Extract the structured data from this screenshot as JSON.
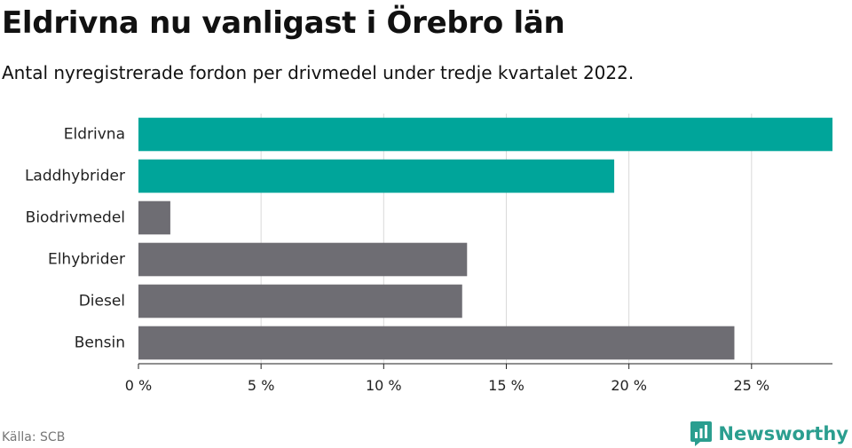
{
  "title": "Eldrivna nu vanligast i Örebro län",
  "subtitle": "Antal nyregistrerade fordon per drivmedel under tredje kvartalet 2022.",
  "source": "Källa: SCB",
  "brand": {
    "name": "Newsworthy",
    "icon": "newsworthy-logo-icon",
    "color": "#2b9e8f"
  },
  "colors": {
    "highlight": "#00a59a",
    "default": "#6e6d73",
    "grid": "#d9d9d9",
    "axis": "#222222"
  },
  "chart_data": {
    "type": "bar",
    "orientation": "horizontal",
    "categories": [
      "Eldrivna",
      "Laddhybrider",
      "Biodrivmedel",
      "Elhybrider",
      "Diesel",
      "Bensin"
    ],
    "values": [
      28.3,
      19.4,
      1.3,
      13.4,
      13.2,
      24.3
    ],
    "highlighted": [
      true,
      true,
      false,
      false,
      false,
      false
    ],
    "xlim": [
      0,
      28.3
    ],
    "xticks": [
      0,
      5,
      10,
      15,
      20,
      25
    ],
    "tick_suffix": " %",
    "grid": true
  }
}
